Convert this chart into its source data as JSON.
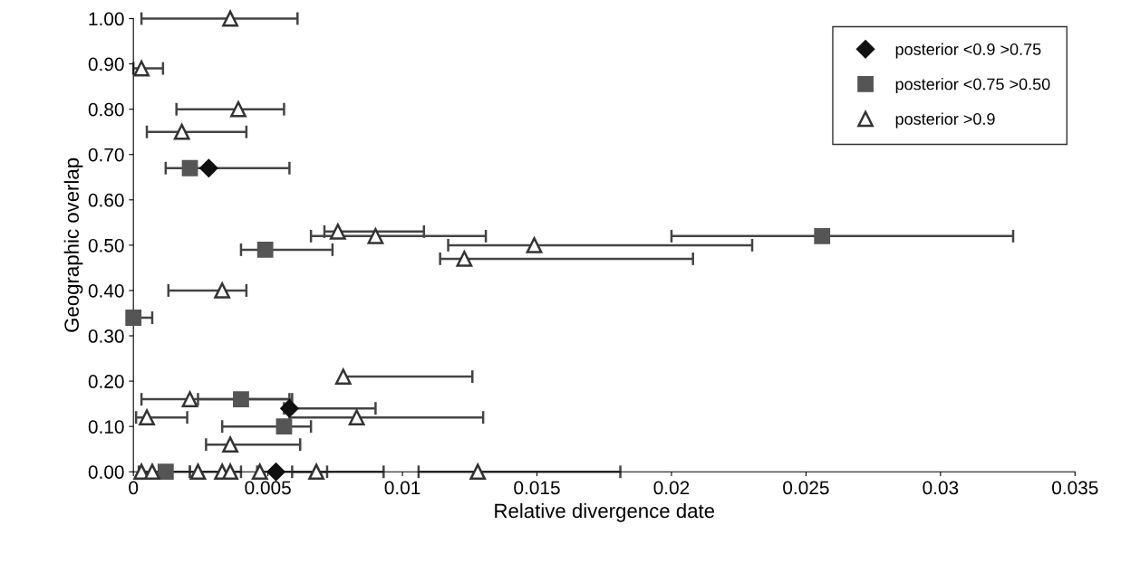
{
  "chart_data": {
    "type": "scatter",
    "xlabel": "Relative divergence date",
    "ylabel": "Geographic overlap",
    "xlim": [
      0,
      0.035
    ],
    "ylim": [
      0,
      1
    ],
    "xticks": [
      0,
      0.005,
      0.01,
      0.015,
      0.02,
      0.025,
      0.03,
      0.035
    ],
    "yticks": [
      {
        "value": 0,
        "label": "0.00"
      },
      {
        "value": 0.1,
        "label": "0.10"
      },
      {
        "value": 0.2,
        "label": "0.20"
      },
      {
        "value": 0.3,
        "label": "0.30"
      },
      {
        "value": 0.4,
        "label": "0.40"
      },
      {
        "value": 0.5,
        "label": "0.50"
      },
      {
        "value": 0.6,
        "label": "0.60"
      },
      {
        "value": 0.7,
        "label": "0.70"
      },
      {
        "value": 0.8,
        "label": "0.80"
      },
      {
        "value": 0.9,
        "label": "0.90"
      },
      {
        "value": 1,
        "label": "1.00"
      }
    ],
    "grid": false,
    "legend": "top right",
    "series": [
      {
        "name": "posterior <0.9 >0.75",
        "color": "#111111",
        "marker": "diamond",
        "x": [
          0.0028,
          0.0058,
          0.0053
        ],
        "values": [
          0.67,
          0.14,
          0
        ],
        "xerrors": [
          [
            0.0012,
            0.0058
          ],
          [
            0.0056,
            0.009
          ],
          [
            0.0046,
            0.0072
          ]
        ]
      },
      {
        "name": "posterior <0.75 >0.50",
        "color": "#555555",
        "marker": "square",
        "x": [
          0.0021,
          0.0049,
          0.0256,
          0,
          0.004,
          0.0056,
          0.0012
        ],
        "values": [
          0.67,
          0.49,
          0.52,
          0.34,
          0.16,
          0.1,
          0
        ],
        "xerrors": [
          null,
          [
            0.004,
            0.0074
          ],
          [
            0.02,
            0.0327
          ],
          [
            0,
            0.0007
          ],
          [
            0.0024,
            0.0059
          ],
          [
            0.0033,
            0.0066
          ],
          [
            0.0002,
            0.0021
          ]
        ]
      },
      {
        "name": "posterior >0.9",
        "color": "#333333",
        "marker": "triangle",
        "x": [
          0.0036,
          0.0003,
          0.0039,
          0.0018,
          0.0076,
          0.009,
          0.0149,
          0.0123,
          0.0033,
          0.0078,
          0.0021,
          0.0005,
          0.0083,
          0.0036,
          0.0003,
          0.0007,
          0.0024,
          0.0033,
          0.0036,
          0.0047,
          0.0068,
          0.0128
        ],
        "values": [
          1,
          0.89,
          0.8,
          0.75,
          0.53,
          0.52,
          0.5,
          0.47,
          0.4,
          0.21,
          0.16,
          0.12,
          0.12,
          0.06,
          0,
          0,
          0,
          0,
          0,
          0,
          0,
          0
        ],
        "xerrors": [
          [
            0.0003,
            0.0061
          ],
          [
            0,
            0.0011
          ],
          [
            0.0016,
            0.0056
          ],
          [
            0.0005,
            0.0042
          ],
          [
            0.0071,
            0.0108
          ],
          [
            0.0066,
            0.0131
          ],
          [
            0.0117,
            0.023
          ],
          [
            0.0114,
            0.0208
          ],
          [
            0.0013,
            0.0042
          ],
          [
            0.0078,
            0.0126
          ],
          [
            0.0003,
            0.0058
          ],
          [
            0.0001,
            0.002
          ],
          [
            0.0058,
            0.013
          ],
          [
            0.0027,
            0.0062
          ],
          null,
          null,
          [
            0.0021,
            0.004
          ],
          null,
          null,
          null,
          [
            0.0059,
            0.0093
          ],
          [
            0.0106,
            0.0181
          ]
        ]
      }
    ]
  }
}
